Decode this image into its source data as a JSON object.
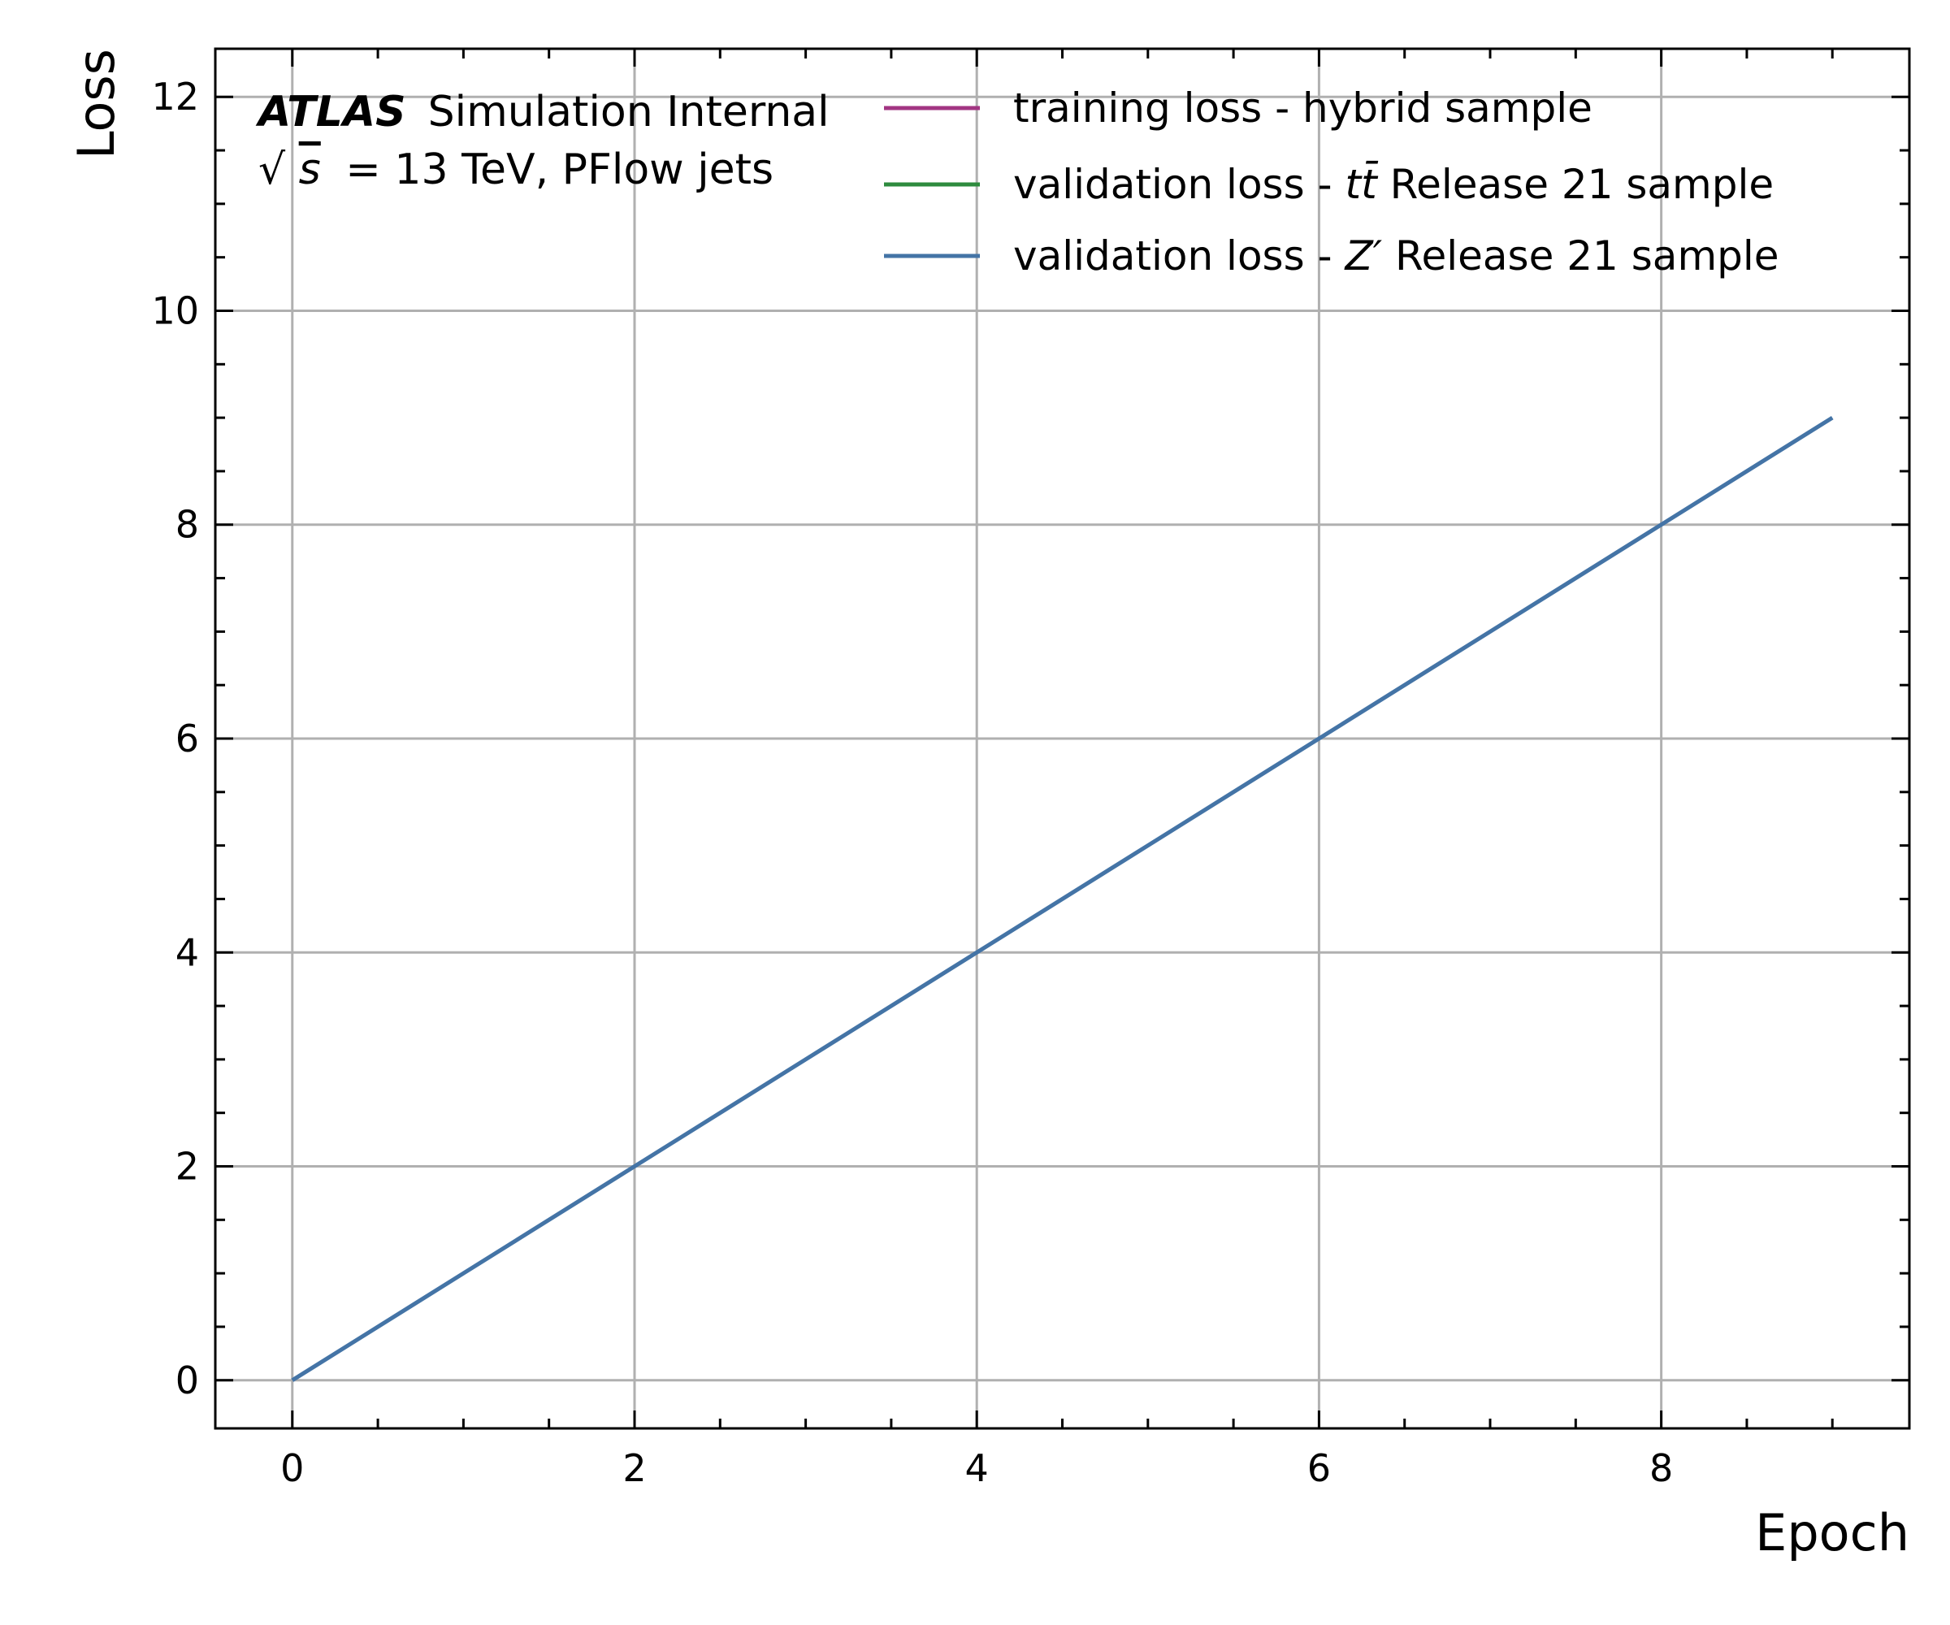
{
  "chart_data": {
    "type": "line",
    "xlabel": "Epoch",
    "ylabel": "Loss",
    "xlim": [
      -0.45,
      9.45
    ],
    "ylim": [
      -0.45,
      12.45
    ],
    "x_ticks": [
      0,
      2,
      4,
      6,
      8
    ],
    "y_ticks": [
      0,
      2,
      4,
      6,
      8,
      10,
      12
    ],
    "x_minor_step": 0.5,
    "y_minor_step": 0.5,
    "grid": true,
    "legend_position": "top-right",
    "annotation": {
      "experiment": "ATLAS",
      "label": "Simulation Internal",
      "sqrt_symbol": "√",
      "s_symbol": "s",
      "energy": "= 13 TeV, PFlow jets"
    },
    "series": [
      {
        "name": "training loss - hybrid sample",
        "legend_parts": [
          "training loss - hybrid sample"
        ],
        "color": "#a23582",
        "x": [],
        "y": []
      },
      {
        "name": "validation loss - tt̄ Release 21 sample",
        "legend_parts": [
          "validation loss - ",
          "tt̄",
          " Release 21 sample"
        ],
        "color": "#2e8b3e",
        "x": [],
        "y": []
      },
      {
        "name": "validation loss - Z′ Release 21 sample",
        "legend_parts": [
          "validation loss - ",
          "Z′",
          " Release 21 sample"
        ],
        "color": "#4474a6",
        "x": [
          0,
          1,
          2,
          3,
          4,
          5,
          6,
          7,
          8,
          9
        ],
        "y": [
          0,
          1,
          2,
          3,
          4,
          5,
          6,
          7,
          8,
          9
        ]
      }
    ]
  }
}
